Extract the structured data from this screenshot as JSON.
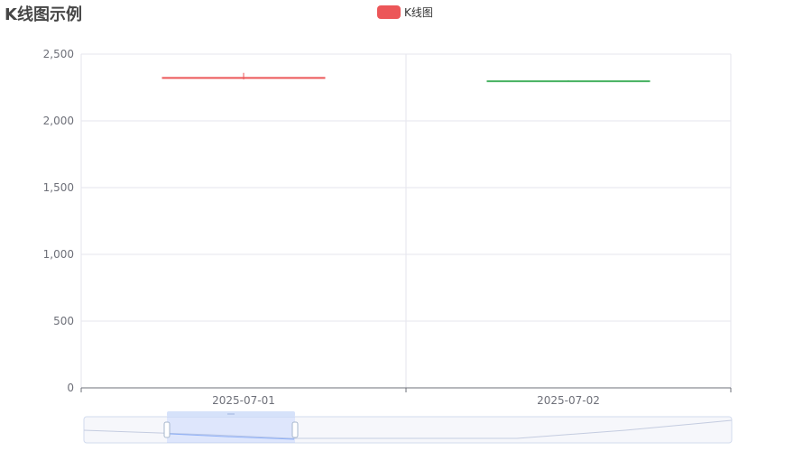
{
  "title": "K线图示例",
  "legend": {
    "label": "K线图",
    "color": "#ec5658"
  },
  "colors": {
    "up": "#ec5658",
    "down": "#47b262",
    "grid": "#e6e6ee",
    "axis_label": "#6e7079",
    "axis_line": "#6e7079"
  },
  "chart_data": {
    "type": "candlestick",
    "categories": [
      "2025-07-01",
      "2025-07-02"
    ],
    "series": [
      {
        "name": "K线图",
        "values": [
          {
            "open": 2320,
            "close": 2325,
            "low": 2310,
            "high": 2360
          },
          {
            "open": 2300,
            "close": 2295,
            "low": 2292,
            "high": 2305
          }
        ]
      }
    ],
    "ylim": [
      0,
      2500
    ],
    "yticks": [
      "0",
      "500",
      "1,000",
      "1,500",
      "2,000",
      "2,500"
    ],
    "grid": true,
    "legend_position": "top-center",
    "data_zoom": {
      "type": "slider",
      "position": "bottom"
    }
  }
}
